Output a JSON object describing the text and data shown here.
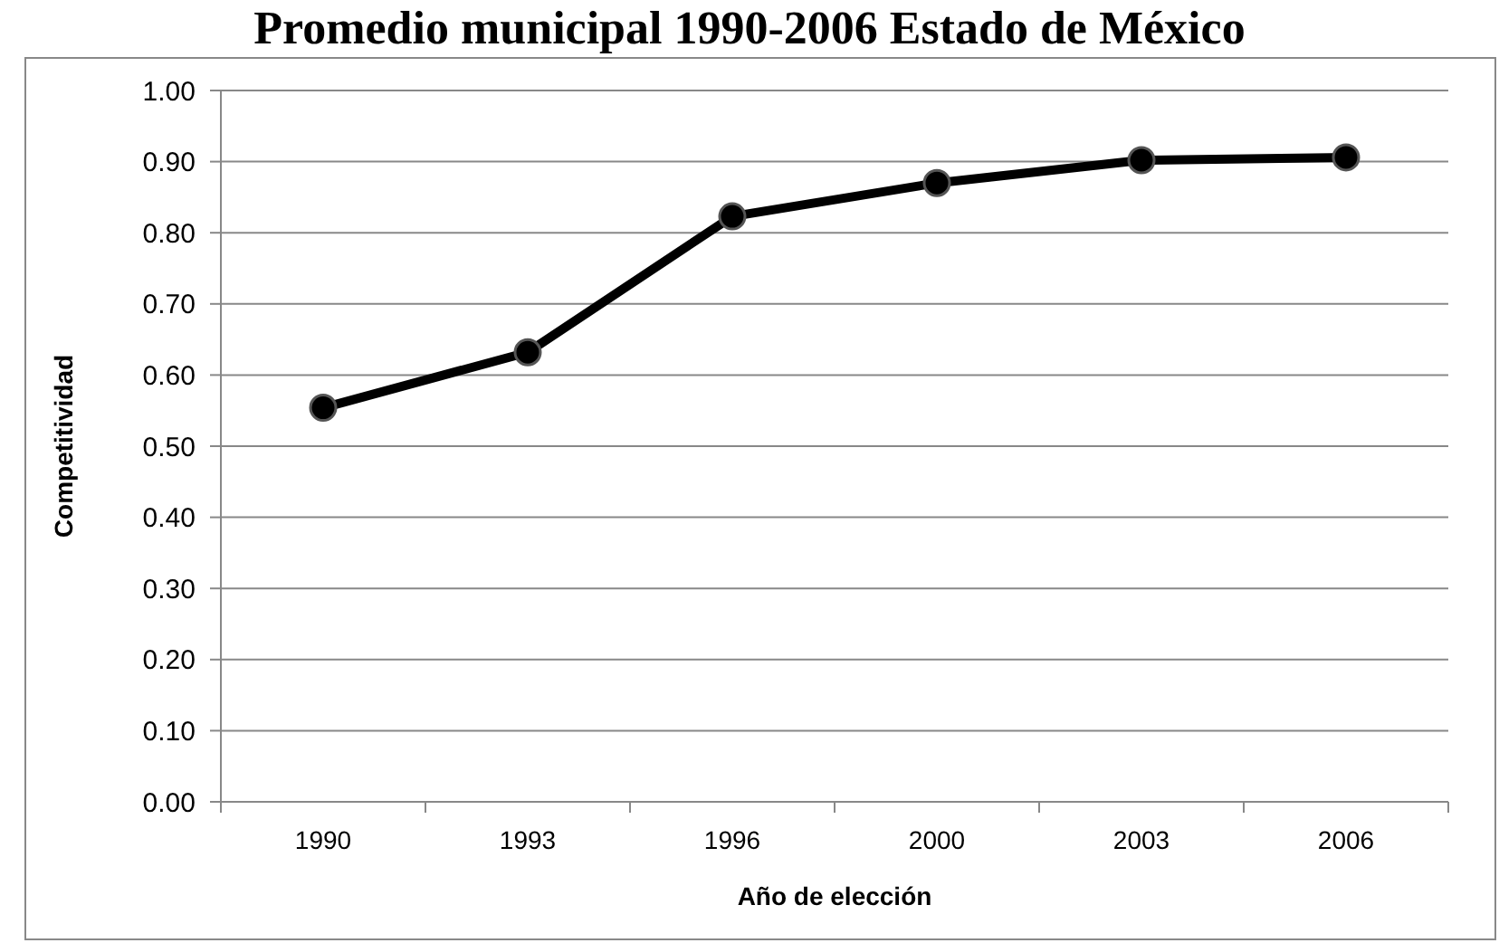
{
  "chart_data": {
    "type": "line",
    "title": "Promedio municipal 1990-2006 Estado de México",
    "xlabel": "Año de elección",
    "ylabel": "Competitividad",
    "categories": [
      "1990",
      "1993",
      "1996",
      "2000",
      "2003",
      "2006"
    ],
    "series": [
      {
        "color": "#000000",
        "values": [
          0.554,
          0.632,
          0.823,
          0.87,
          0.902,
          0.906
        ]
      }
    ],
    "ylim": [
      0,
      1
    ],
    "yticks": [
      {
        "value": 0,
        "label": "0.00"
      },
      {
        "value": 0.1,
        "label": "0.10"
      },
      {
        "value": 0.2,
        "label": "0.20"
      },
      {
        "value": 0.3,
        "label": "0.30"
      },
      {
        "value": 0.4,
        "label": "0.40"
      },
      {
        "value": 0.5,
        "label": "0.50"
      },
      {
        "value": 0.6,
        "label": "0.60"
      },
      {
        "value": 0.7,
        "label": "0.70"
      },
      {
        "value": 0.8,
        "label": "0.80"
      },
      {
        "value": 0.9,
        "label": "0.90"
      },
      {
        "value": 1,
        "label": "1.00"
      }
    ],
    "grid": "y",
    "marker": "circle",
    "line_style": "solid"
  }
}
